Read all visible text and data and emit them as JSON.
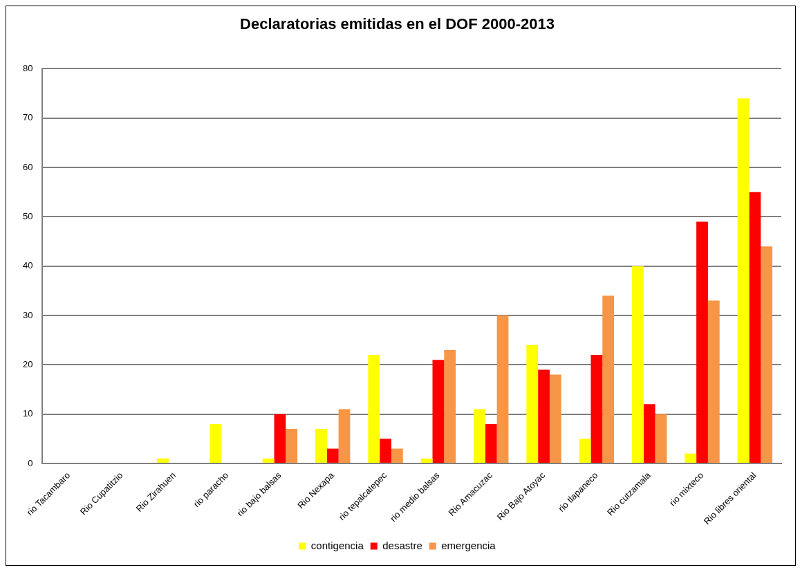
{
  "chart_data": {
    "type": "bar",
    "title": "Declaratorias emitidas en el DOF 2000-2013",
    "categories": [
      "rio Tacambaro",
      "Rio Cupatitzio",
      "Rio Zirahuen",
      "rio paracho",
      "rio bajo balsas",
      "Rio Nexapa",
      "rio tepalcatepec",
      "rio medio balsas",
      "Rio Amacuzac",
      "Rio Bajo Atoyac",
      "rio tlapaneco",
      "Rio cutzamala",
      "rio mixteco",
      "Rio libres oriental"
    ],
    "series": [
      {
        "name": "contigencia",
        "color": "#ffff00",
        "values": [
          0,
          0,
          1,
          8,
          1,
          7,
          22,
          1,
          11,
          24,
          5,
          40,
          2,
          74
        ]
      },
      {
        "name": "desastre",
        "color": "#ff0000",
        "values": [
          0,
          0,
          0,
          0,
          10,
          3,
          5,
          21,
          8,
          19,
          22,
          12,
          49,
          55
        ]
      },
      {
        "name": "emergencia",
        "color": "#f79646",
        "values": [
          0,
          0,
          0,
          0,
          7,
          11,
          3,
          23,
          30,
          18,
          34,
          10,
          33,
          44
        ]
      }
    ],
    "ylim": [
      0,
      80
    ],
    "yticks": [
      0,
      10,
      20,
      30,
      40,
      50,
      60,
      70,
      80
    ],
    "grid": "y",
    "legend": "bottom"
  }
}
